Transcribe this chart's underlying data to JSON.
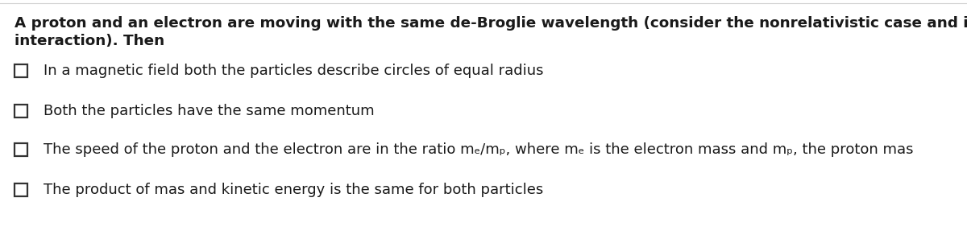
{
  "background_color": "#ffffff",
  "top_line_color": "#d0d0d0",
  "question_text_line1": "A proton and an electron are moving with the same de-Broglie wavelength (consider the nonrelativistic case and ignore mutual",
  "question_text_line2": "interaction). Then",
  "options": [
    "In a magnetic field both the particles describe circles of equal radius",
    "Both the particles have the same momentum",
    "The speed of the proton and the electron are in the ratio mₑ/mₚ, where mₑ is the electron mass and mₚ, the proton mas",
    "The product of mas and kinetic energy is the same for both particles"
  ],
  "checkbox_color": "#333333",
  "text_color": "#1a1a1a",
  "question_fontsize": 13.2,
  "option_fontsize": 13.0,
  "figsize": [
    12.0,
    3.02
  ],
  "dpi": 100
}
